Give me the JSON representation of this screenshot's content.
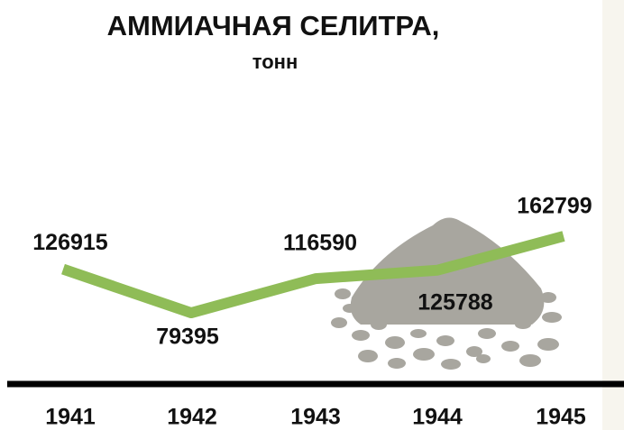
{
  "chart_data": {
    "type": "line",
    "title": "АММИАЧНАЯ СЕЛИТРА,",
    "subtitle": "тонн",
    "categories": [
      "1941",
      "1942",
      "1943",
      "1944",
      "1945"
    ],
    "values": [
      126915,
      79395,
      116590,
      125788,
      162799
    ],
    "color": "#8fbc57"
  }
}
